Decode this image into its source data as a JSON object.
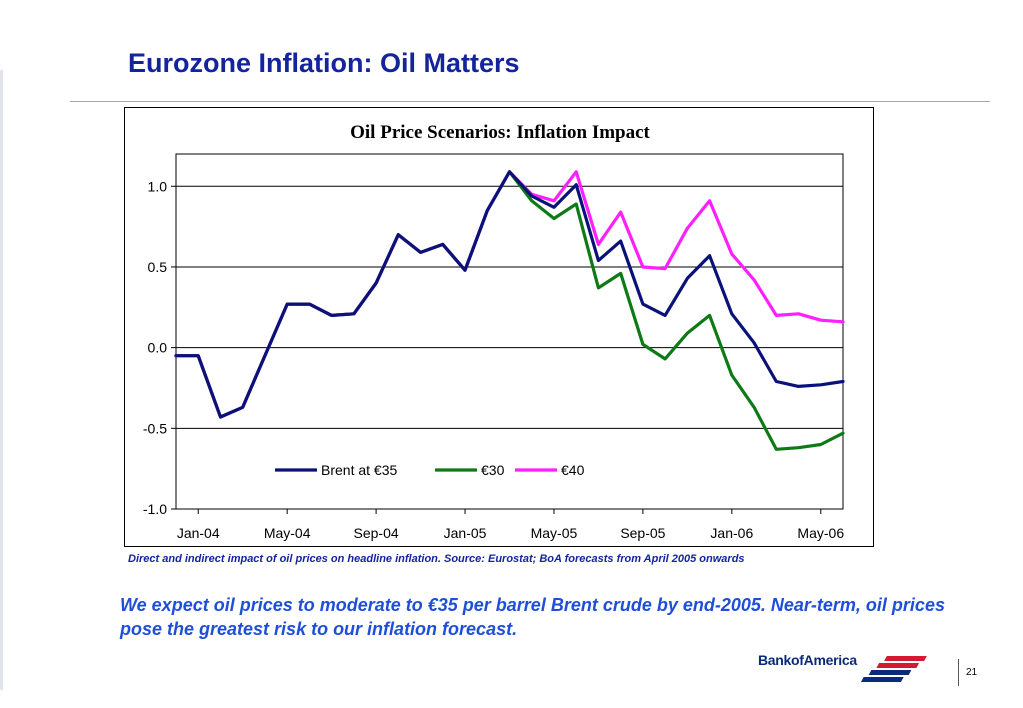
{
  "slide": {
    "title": "Eurozone Inflation: Oil Matters",
    "source_note": "Direct and indirect impact of oil prices on headline inflation. Source:  Eurostat; BoA forecasts from April 2005 onwards",
    "takeaway": "We expect oil prices to moderate to €35 per barrel Brent crude by end-2005. Near-term, oil prices pose the greatest risk to our inflation forecast.",
    "logo_text": "BankofAmerica",
    "page_number": "21"
  },
  "colors": {
    "title": "#14249c",
    "takeaway": "#1f4fd8",
    "logo_red": "#d6192e",
    "logo_blue": "#0b2a7a"
  },
  "icons": {
    "logo_mark": "bank-of-america-flag-icon"
  },
  "chart_data": {
    "type": "line",
    "title": "Oil Price Scenarios: Inflation Impact",
    "xlabel": "",
    "ylabel": "",
    "ylim": [
      -1.0,
      1.2
    ],
    "yticks": [
      "1.0",
      "0.5",
      "0.0",
      "-0.5",
      "-1.0"
    ],
    "ytick_values": [
      1.0,
      0.5,
      0.0,
      -0.5,
      -1.0
    ],
    "xtick_labels": [
      "Jan-04",
      "May-04",
      "Sep-04",
      "Jan-05",
      "May-05",
      "Sep-05",
      "Jan-06",
      "May-06"
    ],
    "xtick_month_index": [
      0,
      4,
      8,
      12,
      16,
      20,
      24,
      28
    ],
    "grid": "horizontal",
    "legend_position": "bottom-center",
    "x_start": "Dec-03",
    "x": [
      "Dec-03",
      "Jan-04",
      "Feb-04",
      "Mar-04",
      "Apr-04",
      "May-04",
      "Jun-04",
      "Jul-04",
      "Aug-04",
      "Sep-04",
      "Oct-04",
      "Nov-04",
      "Dec-04",
      "Jan-05",
      "Feb-05",
      "Mar-05",
      "Apr-05",
      "May-05",
      "Jun-05",
      "Jul-05",
      "Aug-05",
      "Sep-05",
      "Oct-05",
      "Nov-05",
      "Dec-05",
      "Jan-06",
      "Feb-06",
      "Mar-06",
      "Apr-06",
      "May-06",
      "Jun-06"
    ],
    "series": [
      {
        "name": "Brent at €35",
        "color": "#0a127a",
        "values": [
          -0.05,
          -0.05,
          -0.43,
          -0.37,
          -0.05,
          0.27,
          0.27,
          0.2,
          0.21,
          0.4,
          0.7,
          0.59,
          0.64,
          0.48,
          0.85,
          1.09,
          0.94,
          0.87,
          1.01,
          0.54,
          0.66,
          0.27,
          0.2,
          0.43,
          0.57,
          0.21,
          0.03,
          -0.21,
          -0.24,
          -0.23,
          -0.21
        ]
      },
      {
        "name": "€30",
        "color": "#0e7a16",
        "values": [
          -0.05,
          -0.05,
          -0.43,
          -0.37,
          -0.05,
          0.27,
          0.27,
          0.2,
          0.21,
          0.4,
          0.7,
          0.59,
          0.64,
          0.48,
          0.85,
          1.09,
          0.91,
          0.8,
          0.89,
          0.37,
          0.46,
          0.02,
          -0.07,
          0.09,
          0.2,
          -0.17,
          -0.37,
          -0.63,
          -0.62,
          -0.6,
          -0.53
        ]
      },
      {
        "name": "€40",
        "color": "#ff1fff",
        "values": [
          -0.05,
          -0.05,
          -0.43,
          -0.37,
          -0.05,
          0.27,
          0.27,
          0.2,
          0.21,
          0.4,
          0.7,
          0.59,
          0.64,
          0.48,
          0.85,
          1.09,
          0.95,
          0.91,
          1.09,
          0.64,
          0.84,
          0.5,
          0.49,
          0.74,
          0.91,
          0.58,
          0.42,
          0.2,
          0.21,
          0.17,
          0.16
        ]
      }
    ]
  }
}
